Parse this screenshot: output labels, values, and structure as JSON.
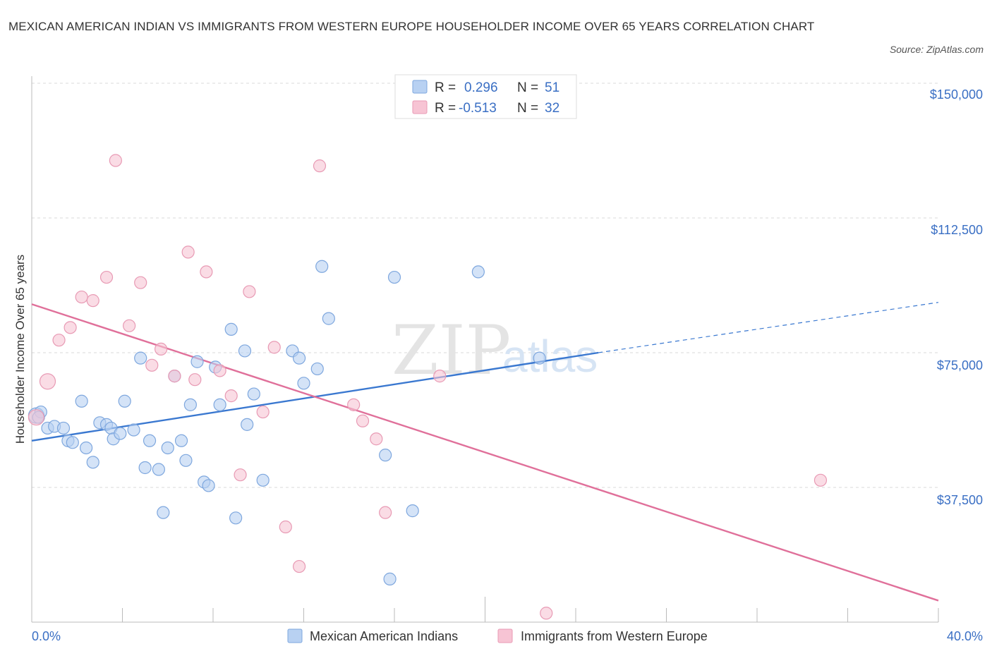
{
  "title": "MEXICAN AMERICAN INDIAN VS IMMIGRANTS FROM WESTERN EUROPE HOUSEHOLDER INCOME OVER 65 YEARS CORRELATION CHART",
  "source": "Source: ZipAtlas.com",
  "watermark": {
    "zip": "ZIP",
    "atlas": "atlas"
  },
  "colors": {
    "blue": "#3a78d0",
    "blue_fill": "#b8d1f2",
    "pink": "#e0709a",
    "pink_fill": "#f7c4d4",
    "axis_text": "#3a6fc4"
  },
  "legend": {
    "rows": [
      {
        "r_label": "R =",
        "r_value": "0.296",
        "n_label": "N =",
        "n_value": "51"
      },
      {
        "r_label": "R =",
        "r_value": "-0.513",
        "n_label": "N =",
        "n_value": "32"
      }
    ]
  },
  "chart_data": {
    "type": "scatter",
    "xlabel": "",
    "ylabel": "Householder Income Over 65 years",
    "xlim": [
      0,
      40
    ],
    "ylim": [
      0,
      150000
    ],
    "x_tick_labels": [
      "0.0%",
      "40.0%"
    ],
    "y_tick_labels": [
      "$150,000",
      "$112,500",
      "$75,000",
      "$37,500"
    ],
    "y_tick_values": [
      150000,
      112500,
      75000,
      37500
    ],
    "grid": true,
    "series": [
      {
        "name": "Mexican American Indians",
        "points": [
          [
            0.2,
            57500
          ],
          [
            0.4,
            58500
          ],
          [
            0.7,
            54000
          ],
          [
            1.0,
            54500
          ],
          [
            1.4,
            54000
          ],
          [
            1.6,
            50500
          ],
          [
            1.8,
            50000
          ],
          [
            2.2,
            61500
          ],
          [
            2.4,
            48500
          ],
          [
            2.7,
            44500
          ],
          [
            3.0,
            55500
          ],
          [
            3.3,
            55000
          ],
          [
            3.5,
            54000
          ],
          [
            3.6,
            51000
          ],
          [
            3.9,
            52500
          ],
          [
            4.1,
            61500
          ],
          [
            4.5,
            53500
          ],
          [
            4.8,
            73500
          ],
          [
            5.0,
            43000
          ],
          [
            5.2,
            50500
          ],
          [
            5.6,
            42500
          ],
          [
            5.8,
            30500
          ],
          [
            6.0,
            48500
          ],
          [
            6.3,
            68500
          ],
          [
            6.6,
            50500
          ],
          [
            6.8,
            45000
          ],
          [
            7.0,
            60500
          ],
          [
            7.3,
            72500
          ],
          [
            7.6,
            39000
          ],
          [
            7.8,
            38000
          ],
          [
            8.1,
            71000
          ],
          [
            8.3,
            60500
          ],
          [
            8.8,
            81500
          ],
          [
            9.0,
            29000
          ],
          [
            9.4,
            75500
          ],
          [
            9.5,
            55000
          ],
          [
            9.8,
            63500
          ],
          [
            10.2,
            39500
          ],
          [
            11.5,
            75500
          ],
          [
            11.8,
            73500
          ],
          [
            12.0,
            66500
          ],
          [
            12.6,
            70500
          ],
          [
            12.8,
            99000
          ],
          [
            13.1,
            84500
          ],
          [
            15.6,
            46500
          ],
          [
            15.8,
            12000
          ],
          [
            16.0,
            96000
          ],
          [
            16.8,
            31000
          ],
          [
            19.7,
            97500
          ],
          [
            22.4,
            73500
          ],
          [
            0.3,
            57000
          ]
        ],
        "trend": {
          "x": [
            0,
            25
          ],
          "y": [
            50500,
            75000
          ],
          "dashed_to": [
            40,
            89000
          ]
        }
      },
      {
        "name": "Immigrants from Western Europe",
        "points": [
          [
            0.2,
            57000
          ],
          [
            0.7,
            67000
          ],
          [
            1.2,
            78500
          ],
          [
            1.7,
            82000
          ],
          [
            2.2,
            90500
          ],
          [
            2.7,
            89500
          ],
          [
            3.3,
            96000
          ],
          [
            3.7,
            128500
          ],
          [
            4.3,
            82500
          ],
          [
            4.8,
            94500
          ],
          [
            5.3,
            71500
          ],
          [
            5.7,
            76000
          ],
          [
            6.3,
            68500
          ],
          [
            6.9,
            103000
          ],
          [
            7.2,
            67500
          ],
          [
            7.7,
            97500
          ],
          [
            8.3,
            70000
          ],
          [
            8.8,
            63000
          ],
          [
            9.6,
            92000
          ],
          [
            10.2,
            58500
          ],
          [
            10.7,
            76500
          ],
          [
            9.2,
            41000
          ],
          [
            11.2,
            26500
          ],
          [
            11.8,
            15500
          ],
          [
            12.7,
            127000
          ],
          [
            14.2,
            60500
          ],
          [
            14.6,
            56000
          ],
          [
            15.2,
            51000
          ],
          [
            15.6,
            30500
          ],
          [
            18.0,
            68500
          ],
          [
            22.7,
            2500
          ],
          [
            34.8,
            39500
          ]
        ],
        "trend": {
          "x": [
            0,
            40
          ],
          "y": [
            88500,
            6000
          ]
        }
      }
    ],
    "legend_placement": "top-center"
  }
}
